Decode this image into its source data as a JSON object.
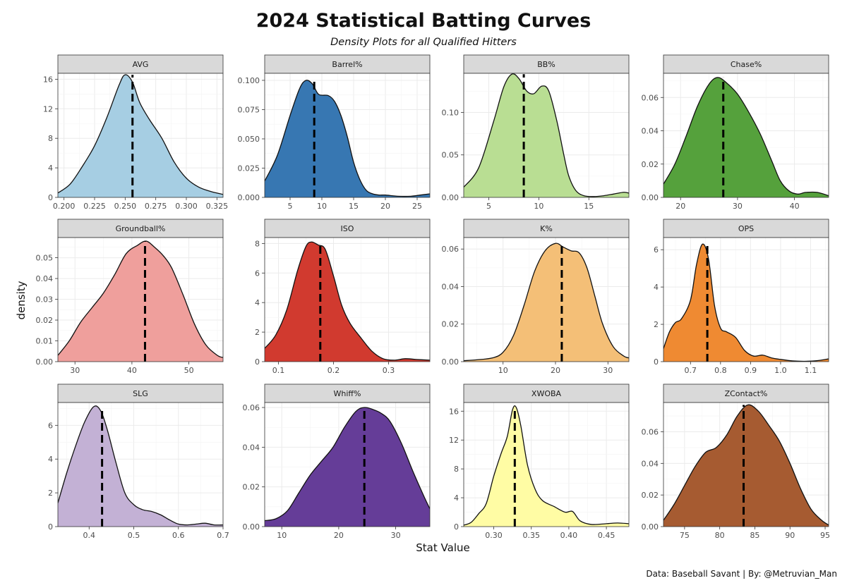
{
  "title": "2024 Statistical Batting Curves",
  "subtitle": "Density Plots for all Qualified Hitters",
  "caption": "Data: Baseball Savant | By: @Metruvian_Man",
  "chart_data": {
    "type": "area",
    "xlabel": "Stat Value",
    "ylabel": "density",
    "grid": true,
    "legend": "none",
    "panels": [
      {
        "name": "AVG",
        "color": "#a6cee3",
        "xlim": [
          0.195,
          0.33
        ],
        "ylim": [
          0,
          16.8
        ],
        "xticks": [
          0.2,
          0.225,
          0.25,
          0.275,
          0.3,
          0.325
        ],
        "xtick_labels": [
          "0.200",
          "0.225",
          "0.250",
          "0.275",
          "0.300",
          "0.325"
        ],
        "yticks": [
          0,
          4,
          8,
          12,
          16
        ],
        "ytick_labels": [
          "0",
          "4",
          "8",
          "12",
          "16"
        ],
        "mean": 0.256,
        "x": [
          0.195,
          0.205,
          0.215,
          0.225,
          0.235,
          0.245,
          0.25,
          0.256,
          0.262,
          0.27,
          0.28,
          0.29,
          0.3,
          0.31,
          0.32,
          0.33
        ],
        "y": [
          0.6,
          1.8,
          4.2,
          7.0,
          10.8,
          15.2,
          16.6,
          15.6,
          12.8,
          10.5,
          8.0,
          4.8,
          2.6,
          1.4,
          0.8,
          0.4
        ]
      },
      {
        "name": "Barrel%",
        "color": "#3777b2",
        "xlim": [
          1,
          27
        ],
        "ylim": [
          0,
          0.106
        ],
        "xticks": [
          5,
          10,
          15,
          20,
          25
        ],
        "xtick_labels": [
          "5",
          "10",
          "15",
          "20",
          "25"
        ],
        "yticks": [
          0,
          0.025,
          0.05,
          0.075,
          0.1
        ],
        "ytick_labels": [
          "0.000",
          "0.025",
          "0.050",
          "0.075",
          "0.100"
        ],
        "mean": 8.8,
        "x": [
          1,
          3,
          5,
          6.5,
          7.5,
          8.5,
          9.5,
          11,
          12,
          13,
          14,
          15,
          16,
          17,
          18,
          19,
          20,
          22,
          24,
          25.5,
          27
        ],
        "y": [
          0.014,
          0.036,
          0.07,
          0.093,
          0.1,
          0.097,
          0.088,
          0.087,
          0.082,
          0.07,
          0.052,
          0.03,
          0.015,
          0.006,
          0.003,
          0.002,
          0.002,
          0.001,
          0.001,
          0.002,
          0.003
        ]
      },
      {
        "name": "BB%",
        "color": "#b9de93",
        "xlim": [
          2.5,
          19
        ],
        "ylim": [
          0,
          0.146
        ],
        "xticks": [
          5,
          10,
          15
        ],
        "xtick_labels": [
          "5",
          "10",
          "15"
        ],
        "yticks": [
          0,
          0.05,
          0.1
        ],
        "ytick_labels": [
          "0.00",
          "0.05",
          "0.10"
        ],
        "mean": 8.5,
        "x": [
          2.5,
          4,
          5.5,
          6.5,
          7.3,
          8,
          8.8,
          9.5,
          10.3,
          11,
          11.8,
          12.5,
          13,
          13.7,
          14.5,
          15.5,
          16.5,
          17.5,
          18.5,
          19
        ],
        "y": [
          0.012,
          0.035,
          0.09,
          0.13,
          0.145,
          0.14,
          0.125,
          0.122,
          0.131,
          0.125,
          0.09,
          0.05,
          0.025,
          0.008,
          0.002,
          0.001,
          0.002,
          0.004,
          0.006,
          0.005
        ]
      },
      {
        "name": "Chase%",
        "color": "#55a13c",
        "xlim": [
          17,
          46
        ],
        "ylim": [
          0,
          0.0745
        ],
        "xticks": [
          20,
          30,
          40
        ],
        "xtick_labels": [
          "20",
          "30",
          "40"
        ],
        "yticks": [
          0,
          0.02,
          0.04,
          0.06
        ],
        "ytick_labels": [
          "0.00",
          "0.02",
          "0.04",
          "0.06"
        ],
        "mean": 27.5,
        "x": [
          17,
          19,
          21,
          23,
          25,
          26.5,
          28,
          30,
          32,
          34,
          36,
          37.5,
          39,
          40.5,
          42,
          44,
          46
        ],
        "y": [
          0.008,
          0.02,
          0.037,
          0.055,
          0.068,
          0.072,
          0.069,
          0.062,
          0.051,
          0.038,
          0.022,
          0.01,
          0.004,
          0.002,
          0.003,
          0.003,
          0.001
        ]
      },
      {
        "name": "Groundball%",
        "color": "#ef9f9c",
        "xlim": [
          27,
          56
        ],
        "ylim": [
          0,
          0.0597
        ],
        "xticks": [
          30,
          40,
          50
        ],
        "xtick_labels": [
          "30",
          "40",
          "50"
        ],
        "yticks": [
          0,
          0.01,
          0.02,
          0.03,
          0.04,
          0.05
        ],
        "ytick_labels": [
          "0.00",
          "0.01",
          "0.02",
          "0.03",
          "0.04",
          "0.05"
        ],
        "mean": 42.3,
        "x": [
          27,
          29,
          31,
          33,
          35,
          37,
          39,
          41,
          42.5,
          44,
          45.5,
          47,
          49,
          51,
          53,
          55,
          56
        ],
        "y": [
          0.003,
          0.01,
          0.019,
          0.026,
          0.033,
          0.042,
          0.052,
          0.056,
          0.058,
          0.055,
          0.051,
          0.045,
          0.032,
          0.018,
          0.008,
          0.003,
          0.002
        ]
      },
      {
        "name": "ISO",
        "color": "#d13a2f",
        "xlim": [
          0.075,
          0.375
        ],
        "ylim": [
          0,
          8.4
        ],
        "xticks": [
          0.1,
          0.2,
          0.3
        ],
        "xtick_labels": [
          "0.1",
          "0.2",
          "0.3"
        ],
        "yticks": [
          0,
          2,
          4,
          6,
          8
        ],
        "ytick_labels": [
          "0",
          "2",
          "4",
          "6",
          "8"
        ],
        "mean": 0.176,
        "x": [
          0.075,
          0.095,
          0.115,
          0.135,
          0.15,
          0.16,
          0.172,
          0.185,
          0.2,
          0.215,
          0.23,
          0.25,
          0.27,
          0.29,
          0.31,
          0.33,
          0.35,
          0.375
        ],
        "y": [
          0.9,
          1.8,
          3.5,
          6.2,
          7.8,
          8.1,
          7.9,
          7.6,
          5.8,
          3.8,
          2.6,
          1.6,
          0.7,
          0.2,
          0.1,
          0.2,
          0.15,
          0.1
        ]
      },
      {
        "name": "K%",
        "color": "#f4bf77",
        "xlim": [
          2.5,
          34
        ],
        "ylim": [
          0,
          0.0661
        ],
        "xticks": [
          10,
          20,
          30
        ],
        "xtick_labels": [
          "10",
          "20",
          "30"
        ],
        "yticks": [
          0,
          0.02,
          0.04,
          0.06
        ],
        "ytick_labels": [
          "0.00",
          "0.02",
          "0.04",
          "0.06"
        ],
        "mean": 21.2,
        "x": [
          2.5,
          5,
          8,
          10,
          12,
          14,
          16,
          18,
          20,
          21.5,
          23,
          24.5,
          26,
          27.5,
          29,
          31,
          33,
          34
        ],
        "y": [
          0.0005,
          0.001,
          0.002,
          0.005,
          0.014,
          0.03,
          0.048,
          0.059,
          0.063,
          0.061,
          0.059,
          0.058,
          0.05,
          0.035,
          0.02,
          0.008,
          0.003,
          0.002
        ]
      },
      {
        "name": "OPS",
        "color": "#ef8a32",
        "xlim": [
          0.61,
          1.16
        ],
        "ylim": [
          0,
          6.65
        ],
        "xticks": [
          0.7,
          0.8,
          0.9,
          1.0,
          1.1
        ],
        "xtick_labels": [
          "0.7",
          "0.8",
          "0.9",
          "1.0",
          "1.1"
        ],
        "yticks": [
          0,
          2,
          4,
          6
        ],
        "ytick_labels": [
          "0",
          "2",
          "4",
          "6"
        ],
        "mean": 0.756,
        "x": [
          0.61,
          0.63,
          0.65,
          0.67,
          0.7,
          0.72,
          0.74,
          0.76,
          0.78,
          0.8,
          0.82,
          0.85,
          0.88,
          0.91,
          0.94,
          0.97,
          1.0,
          1.04,
          1.08,
          1.12,
          1.16
        ],
        "y": [
          0.7,
          1.6,
          2.1,
          2.3,
          3.3,
          5.2,
          6.3,
          5.5,
          3.0,
          1.8,
          1.6,
          1.3,
          0.6,
          0.3,
          0.35,
          0.2,
          0.12,
          0.04,
          0.02,
          0.05,
          0.15
        ]
      },
      {
        "name": "SLG",
        "color": "#c3b1d5",
        "xlim": [
          0.33,
          0.7
        ],
        "ylim": [
          0,
          7.35
        ],
        "xticks": [
          0.4,
          0.5,
          0.6,
          0.7
        ],
        "xtick_labels": [
          "0.4",
          "0.5",
          "0.6",
          "0.7"
        ],
        "yticks": [
          0,
          2,
          4,
          6
        ],
        "ytick_labels": [
          "0",
          "2",
          "4",
          "6"
        ],
        "mean": 0.429,
        "x": [
          0.33,
          0.35,
          0.37,
          0.39,
          0.41,
          0.425,
          0.44,
          0.46,
          0.48,
          0.5,
          0.52,
          0.54,
          0.56,
          0.58,
          0.6,
          0.62,
          0.64,
          0.66,
          0.68,
          0.7
        ],
        "y": [
          1.4,
          3.2,
          4.8,
          6.2,
          7.1,
          6.9,
          5.8,
          3.8,
          2.0,
          1.3,
          1.0,
          0.9,
          0.7,
          0.4,
          0.15,
          0.1,
          0.15,
          0.2,
          0.1,
          0.1
        ]
      },
      {
        "name": "Whiff%",
        "color": "#653d98",
        "xlim": [
          7,
          36
        ],
        "ylim": [
          0,
          0.0625
        ],
        "xticks": [
          10,
          20,
          30
        ],
        "xtick_labels": [
          "10",
          "20",
          "30"
        ],
        "yticks": [
          0,
          0.02,
          0.04,
          0.06
        ],
        "ytick_labels": [
          "0.00",
          "0.02",
          "0.04",
          "0.06"
        ],
        "mean": 24.5,
        "x": [
          7,
          9,
          11,
          13,
          15,
          17,
          19,
          21,
          23,
          24.5,
          26,
          27.5,
          29,
          31,
          33,
          35,
          36
        ],
        "y": [
          0.003,
          0.004,
          0.008,
          0.017,
          0.026,
          0.033,
          0.04,
          0.05,
          0.058,
          0.06,
          0.059,
          0.057,
          0.053,
          0.042,
          0.028,
          0.015,
          0.009
        ]
      },
      {
        "name": "XWOBA",
        "color": "#fffca4",
        "xlim": [
          0.26,
          0.48
        ],
        "ylim": [
          0,
          17.2
        ],
        "xticks": [
          0.3,
          0.35,
          0.4,
          0.45
        ],
        "xtick_labels": [
          "0.30",
          "0.35",
          "0.40",
          "0.45"
        ],
        "yticks": [
          0,
          4,
          8,
          12,
          16
        ],
        "ytick_labels": [
          "0",
          "4",
          "8",
          "12",
          "16"
        ],
        "mean": 0.328,
        "x": [
          0.26,
          0.27,
          0.28,
          0.29,
          0.3,
          0.31,
          0.318,
          0.325,
          0.33,
          0.336,
          0.345,
          0.355,
          0.365,
          0.38,
          0.395,
          0.405,
          0.415,
          0.43,
          0.45,
          0.465,
          0.48
        ],
        "y": [
          0.2,
          0.6,
          1.8,
          3.2,
          7.0,
          10.2,
          12.5,
          16.2,
          16.5,
          14.0,
          8.5,
          5.2,
          3.6,
          2.8,
          2.0,
          2.1,
          0.8,
          0.3,
          0.4,
          0.5,
          0.4
        ]
      },
      {
        "name": "ZContact%",
        "color": "#a65b31",
        "xlim": [
          72,
          95.5
        ],
        "ylim": [
          0,
          0.0785
        ],
        "xticks": [
          75,
          80,
          85,
          90,
          95
        ],
        "xtick_labels": [
          "75",
          "80",
          "85",
          "90",
          "95"
        ],
        "yticks": [
          0,
          0.02,
          0.04,
          0.06
        ],
        "ytick_labels": [
          "0.00",
          "0.02",
          "0.04",
          "0.06"
        ],
        "mean": 83.4,
        "x": [
          72,
          73.5,
          75,
          76.5,
          78,
          79.5,
          81,
          82.5,
          84,
          85.5,
          87,
          88.5,
          90,
          91.5,
          93,
          94.5,
          95.5
        ],
        "y": [
          0.004,
          0.014,
          0.026,
          0.038,
          0.047,
          0.05,
          0.058,
          0.07,
          0.077,
          0.073,
          0.064,
          0.054,
          0.04,
          0.024,
          0.011,
          0.004,
          0.001
        ]
      }
    ]
  }
}
